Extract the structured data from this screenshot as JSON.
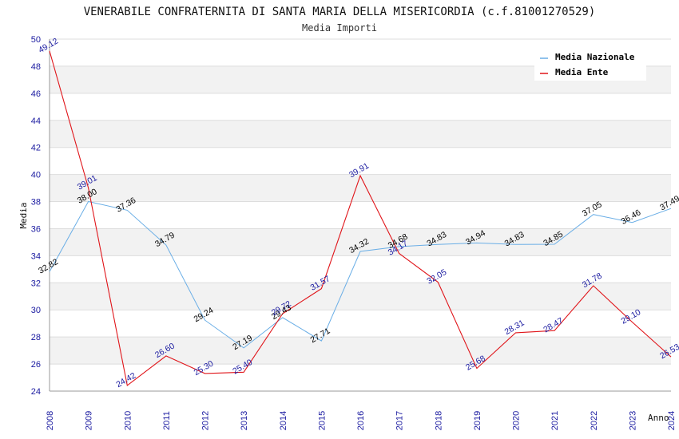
{
  "chart_data": {
    "type": "line",
    "title": "VENERABILE CONFRATERNITA DI SANTA MARIA DELLA MISERICORDIA (c.f.81001270529)",
    "subtitle": "Media Importi",
    "xlabel": "Anno",
    "ylabel": "Media",
    "ylim": [
      24,
      50
    ],
    "y_ticks": [
      "24",
      "26",
      "28",
      "30",
      "32",
      "34",
      "36",
      "38",
      "40",
      "42",
      "44",
      "46",
      "48",
      "50"
    ],
    "categories": [
      "2008",
      "2009",
      "2010",
      "2011",
      "2012",
      "2013",
      "2014",
      "2015",
      "2016",
      "2017",
      "2018",
      "2019",
      "2020",
      "2021",
      "2022",
      "2023",
      "2024"
    ],
    "grid": "horizontal alternating bands",
    "legend_position": "top-right",
    "series": [
      {
        "name": "Media Nazionale",
        "color": "#6aaee6",
        "label_color": "#000000",
        "values": [
          32.82,
          38.0,
          37.36,
          34.79,
          29.24,
          27.19,
          29.43,
          27.71,
          34.32,
          34.68,
          34.83,
          34.94,
          34.83,
          34.85,
          37.05,
          36.46,
          37.49
        ],
        "labels": [
          "32.82",
          "38.00",
          "37.36",
          "34.79",
          "29.24",
          "27.19",
          "29.43",
          "27.71",
          "34.32",
          "34.68",
          "34.83",
          "34.94",
          "34.83",
          "34.85",
          "37.05",
          "36.46",
          "37.49"
        ]
      },
      {
        "name": "Media Ente",
        "color": "#e0151a",
        "label_color": "#1a1aa0",
        "values": [
          49.12,
          39.01,
          24.42,
          26.6,
          25.3,
          25.4,
          29.72,
          31.57,
          39.91,
          34.17,
          32.05,
          25.68,
          28.31,
          28.47,
          31.78,
          29.1,
          26.53
        ],
        "labels": [
          "49.12",
          "39.01",
          "24.42",
          "26.60",
          "25.30",
          "25.40",
          "29.72",
          "31.57",
          "39.91",
          "34.17",
          "32.05",
          "25.68",
          "28.31",
          "28.47",
          "31.78",
          "29.10",
          "26.53"
        ]
      }
    ]
  }
}
